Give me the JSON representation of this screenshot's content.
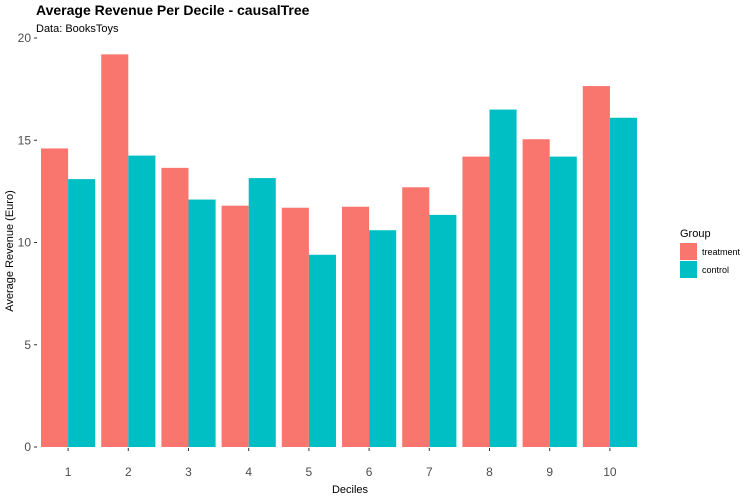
{
  "chart_data": {
    "type": "bar",
    "title": "Average Revenue Per Decile - causalTree",
    "subtitle": "Data: BooksToys",
    "xlabel": "Deciles",
    "ylabel": "Average Revenue (Euro)",
    "ylim": [
      0,
      20
    ],
    "yticks": [
      "0",
      "5",
      "10",
      "15",
      "20"
    ],
    "categories": [
      "1",
      "2",
      "3",
      "4",
      "5",
      "6",
      "7",
      "8",
      "9",
      "10"
    ],
    "legend_title": "Group",
    "legend_position": "right",
    "grid": false,
    "series": [
      {
        "name": "treatment",
        "color": "#F8766D",
        "values": [
          14.6,
          19.2,
          13.65,
          11.8,
          11.7,
          11.75,
          12.7,
          14.2,
          15.05,
          17.65
        ]
      },
      {
        "name": "control",
        "color": "#00BFC4",
        "values": [
          13.1,
          14.25,
          12.1,
          13.15,
          9.4,
          10.6,
          11.35,
          16.5,
          14.2,
          16.1
        ]
      }
    ]
  }
}
